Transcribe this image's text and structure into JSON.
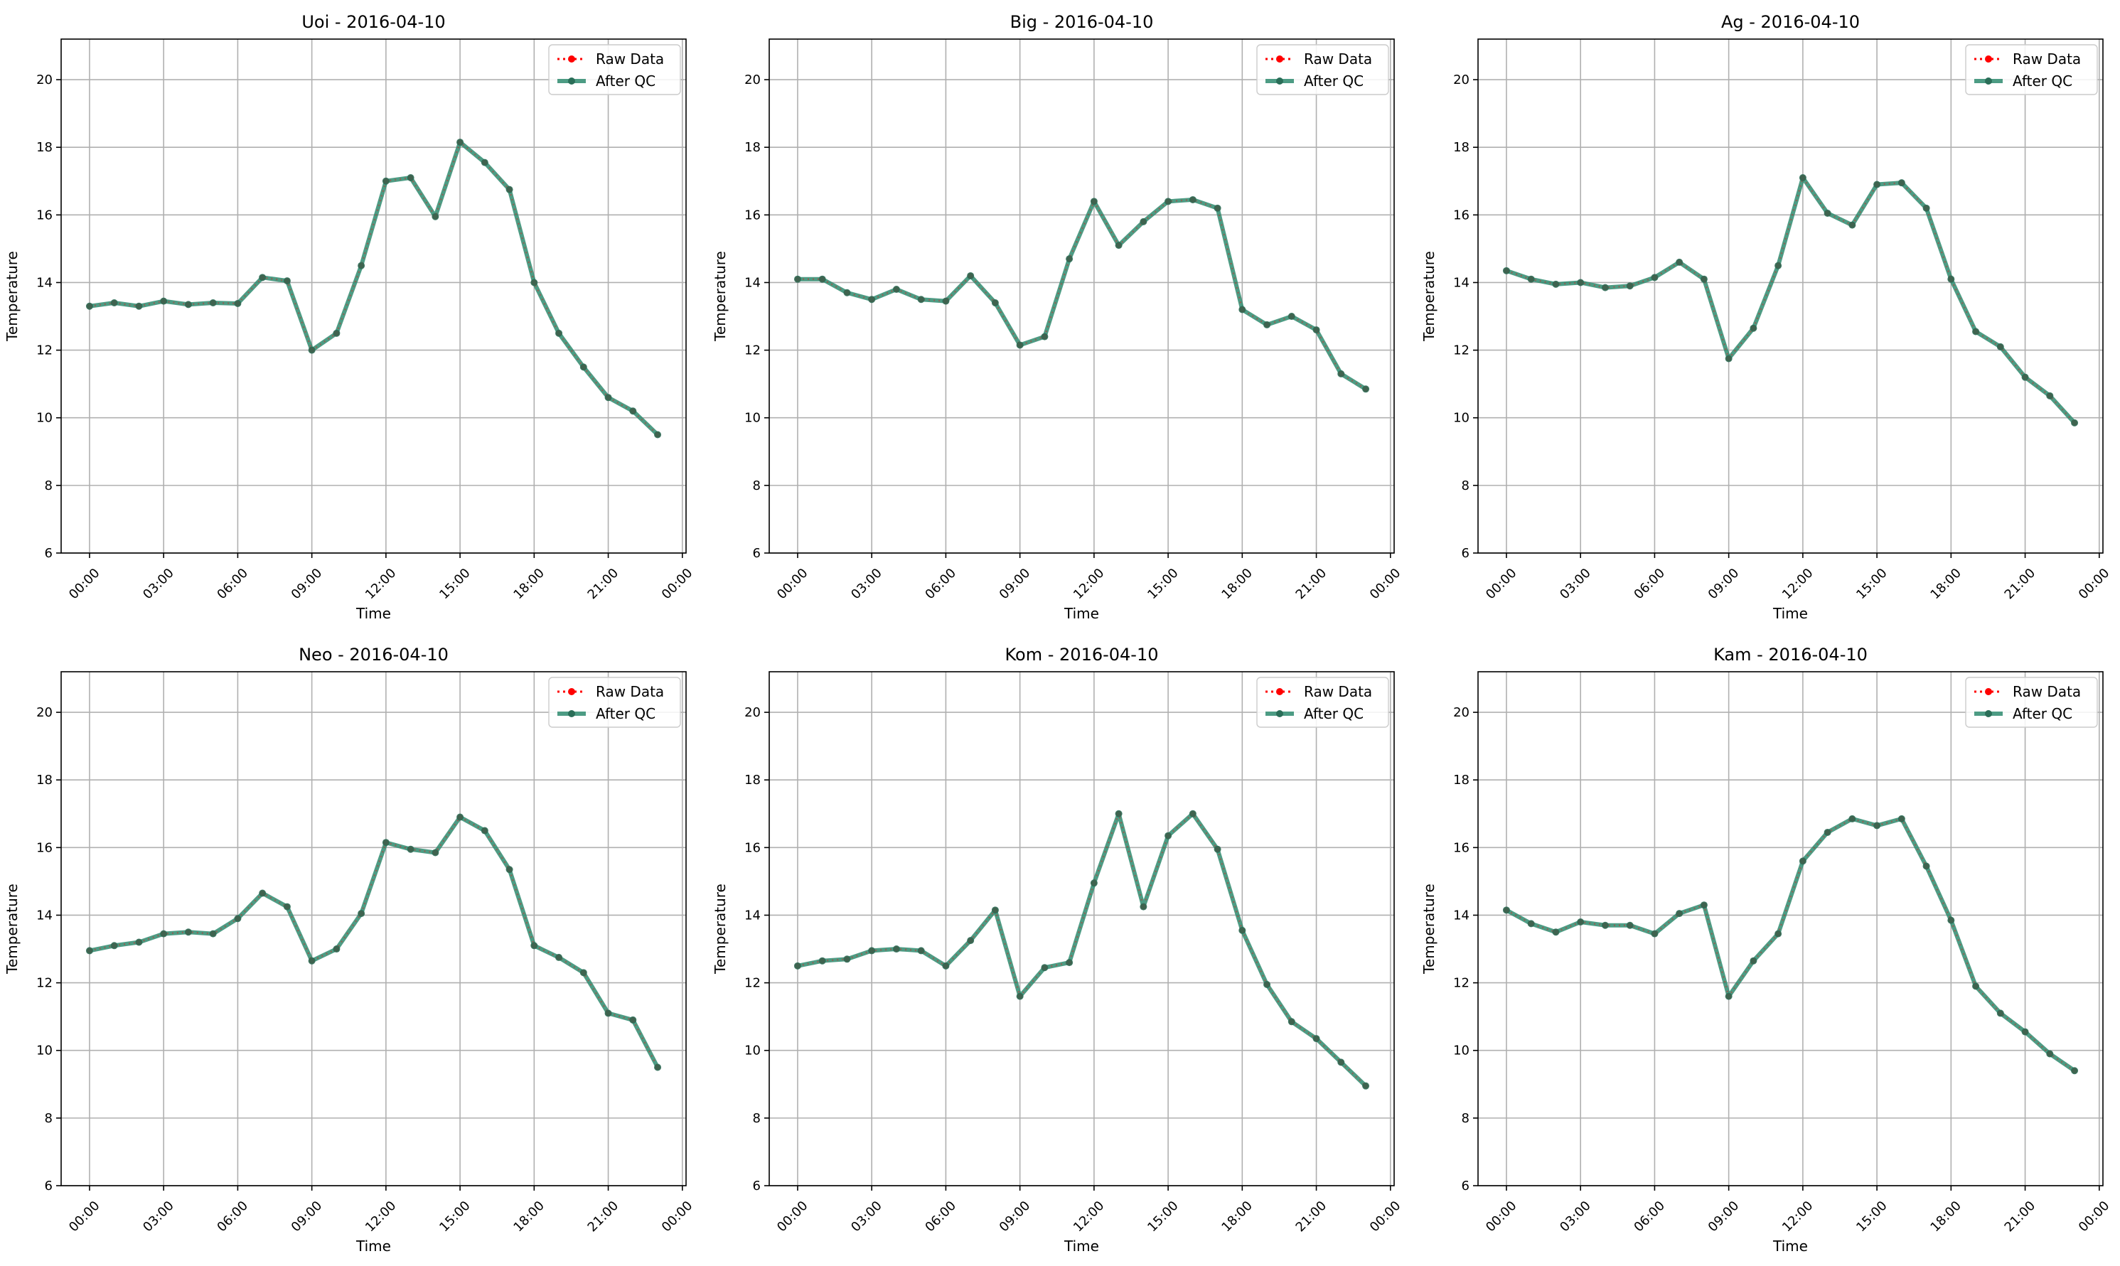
{
  "figure": {
    "legend": {
      "raw_label": "Raw Data",
      "qc_label": "After QC",
      "placement": "upper-right"
    }
  },
  "colors": {
    "raw": "#ff0000",
    "qc": "#2e8b6e",
    "grid": "#b0b0b0",
    "axis": "#000000"
  },
  "chart_data": [
    {
      "type": "line",
      "title": "Uoi - 2016-04-10",
      "xlabel": "Time",
      "ylabel": "Temperature",
      "ylim": [
        6,
        21.2
      ],
      "yticks": [
        6,
        8,
        10,
        12,
        14,
        16,
        18,
        20
      ],
      "xlim": [
        "2016-04-09 22:51",
        "2016-04-11 00:09"
      ],
      "xticks": [
        "00:00",
        "03:00",
        "06:00",
        "09:00",
        "12:00",
        "15:00",
        "18:00",
        "21:00",
        "00:00"
      ],
      "grid": true,
      "x": [
        "00:00",
        "01:00",
        "02:00",
        "03:00",
        "04:00",
        "05:00",
        "06:00",
        "07:00",
        "08:00",
        "09:00",
        "10:00",
        "11:00",
        "12:00",
        "13:00",
        "14:00",
        "15:00",
        "16:00",
        "17:00",
        "18:00",
        "19:00",
        "20:00",
        "21:00",
        "22:00",
        "23:00"
      ],
      "series": [
        {
          "name": "Raw Data",
          "values": [
            13.3,
            13.4,
            13.3,
            13.45,
            13.35,
            13.4,
            13.38,
            14.15,
            14.05,
            12.0,
            12.5,
            14.5,
            17.0,
            17.1,
            15.95,
            18.15,
            17.55,
            16.75,
            14.0,
            12.5,
            11.5,
            10.6,
            10.2,
            9.5
          ]
        },
        {
          "name": "After QC",
          "values": [
            13.3,
            13.4,
            13.3,
            13.45,
            13.35,
            13.4,
            13.38,
            14.15,
            14.05,
            12.0,
            12.5,
            14.5,
            17.0,
            17.1,
            15.95,
            18.15,
            17.55,
            16.75,
            14.0,
            12.5,
            11.5,
            10.6,
            10.2,
            9.5
          ]
        }
      ]
    },
    {
      "type": "line",
      "title": "Big - 2016-04-10",
      "xlabel": "Time",
      "ylabel": "Temperature",
      "ylim": [
        6,
        21.2
      ],
      "yticks": [
        6,
        8,
        10,
        12,
        14,
        16,
        18,
        20
      ],
      "xlim": [
        "2016-04-09 22:51",
        "2016-04-11 00:09"
      ],
      "xticks": [
        "00:00",
        "03:00",
        "06:00",
        "09:00",
        "12:00",
        "15:00",
        "18:00",
        "21:00",
        "00:00"
      ],
      "grid": true,
      "x": [
        "00:00",
        "01:00",
        "02:00",
        "03:00",
        "04:00",
        "05:00",
        "06:00",
        "07:00",
        "08:00",
        "09:00",
        "10:00",
        "11:00",
        "12:00",
        "13:00",
        "14:00",
        "15:00",
        "16:00",
        "17:00",
        "18:00",
        "19:00",
        "20:00",
        "21:00",
        "22:00",
        "23:00"
      ],
      "series": [
        {
          "name": "Raw Data",
          "values": [
            14.1,
            14.1,
            13.7,
            13.5,
            13.8,
            13.5,
            13.45,
            14.2,
            13.4,
            12.15,
            12.4,
            14.7,
            16.4,
            15.1,
            15.8,
            16.4,
            16.45,
            16.2,
            13.2,
            12.75,
            13.0,
            12.6,
            11.3,
            10.85
          ]
        },
        {
          "name": "After QC",
          "values": [
            14.1,
            14.1,
            13.7,
            13.5,
            13.8,
            13.5,
            13.45,
            14.2,
            13.4,
            12.15,
            12.4,
            14.7,
            16.4,
            15.1,
            15.8,
            16.4,
            16.45,
            16.2,
            13.2,
            12.75,
            13.0,
            12.6,
            11.3,
            10.85
          ]
        }
      ]
    },
    {
      "type": "line",
      "title": "Ag - 2016-04-10",
      "xlabel": "Time",
      "ylabel": "Temperature",
      "ylim": [
        6,
        21.2
      ],
      "yticks": [
        6,
        8,
        10,
        12,
        14,
        16,
        18,
        20
      ],
      "xlim": [
        "2016-04-09 22:51",
        "2016-04-11 00:09"
      ],
      "xticks": [
        "00:00",
        "03:00",
        "06:00",
        "09:00",
        "12:00",
        "15:00",
        "18:00",
        "21:00",
        "00:00"
      ],
      "grid": true,
      "x": [
        "00:00",
        "01:00",
        "02:00",
        "03:00",
        "04:00",
        "05:00",
        "06:00",
        "07:00",
        "08:00",
        "09:00",
        "10:00",
        "11:00",
        "12:00",
        "13:00",
        "14:00",
        "15:00",
        "16:00",
        "17:00",
        "18:00",
        "19:00",
        "20:00",
        "21:00",
        "22:00",
        "23:00"
      ],
      "series": [
        {
          "name": "Raw Data",
          "values": [
            14.35,
            14.1,
            13.95,
            14.0,
            13.85,
            13.9,
            14.15,
            14.6,
            14.1,
            11.75,
            12.65,
            14.5,
            17.1,
            16.05,
            15.7,
            16.9,
            16.95,
            16.2,
            14.1,
            12.55,
            12.1,
            11.2,
            10.65,
            9.85
          ]
        },
        {
          "name": "After QC",
          "values": [
            14.35,
            14.1,
            13.95,
            14.0,
            13.85,
            13.9,
            14.15,
            14.6,
            14.1,
            11.75,
            12.65,
            14.5,
            17.1,
            16.05,
            15.7,
            16.9,
            16.95,
            16.2,
            14.1,
            12.55,
            12.1,
            11.2,
            10.65,
            9.85
          ]
        }
      ]
    },
    {
      "type": "line",
      "title": "Neo - 2016-04-10",
      "xlabel": "Time",
      "ylabel": "Temperature",
      "ylim": [
        6,
        21.2
      ],
      "yticks": [
        6,
        8,
        10,
        12,
        14,
        16,
        18,
        20
      ],
      "xlim": [
        "2016-04-09 22:51",
        "2016-04-11 00:09"
      ],
      "xticks": [
        "00:00",
        "03:00",
        "06:00",
        "09:00",
        "12:00",
        "15:00",
        "18:00",
        "21:00",
        "00:00"
      ],
      "grid": true,
      "x": [
        "00:00",
        "01:00",
        "02:00",
        "03:00",
        "04:00",
        "05:00",
        "06:00",
        "07:00",
        "08:00",
        "09:00",
        "10:00",
        "11:00",
        "12:00",
        "13:00",
        "14:00",
        "15:00",
        "16:00",
        "17:00",
        "18:00",
        "19:00",
        "20:00",
        "21:00",
        "22:00",
        "23:00"
      ],
      "series": [
        {
          "name": "Raw Data",
          "values": [
            12.95,
            13.1,
            13.2,
            13.45,
            13.5,
            13.45,
            13.9,
            14.65,
            14.25,
            12.65,
            13.0,
            14.05,
            16.15,
            15.95,
            15.85,
            16.9,
            16.5,
            15.35,
            13.1,
            12.75,
            12.3,
            11.1,
            10.9,
            9.5
          ]
        },
        {
          "name": "After QC",
          "values": [
            12.95,
            13.1,
            13.2,
            13.45,
            13.5,
            13.45,
            13.9,
            14.65,
            14.25,
            12.65,
            13.0,
            14.05,
            16.15,
            15.95,
            15.85,
            16.9,
            16.5,
            15.35,
            13.1,
            12.75,
            12.3,
            11.1,
            10.9,
            9.5
          ]
        }
      ]
    },
    {
      "type": "line",
      "title": "Kom - 2016-04-10",
      "xlabel": "Time",
      "ylabel": "Temperature",
      "ylim": [
        6,
        21.2
      ],
      "yticks": [
        6,
        8,
        10,
        12,
        14,
        16,
        18,
        20
      ],
      "xlim": [
        "2016-04-09 22:51",
        "2016-04-11 00:09"
      ],
      "xticks": [
        "00:00",
        "03:00",
        "06:00",
        "09:00",
        "12:00",
        "15:00",
        "18:00",
        "21:00",
        "00:00"
      ],
      "grid": true,
      "x": [
        "00:00",
        "01:00",
        "02:00",
        "03:00",
        "04:00",
        "05:00",
        "06:00",
        "07:00",
        "08:00",
        "09:00",
        "10:00",
        "11:00",
        "12:00",
        "13:00",
        "14:00",
        "15:00",
        "16:00",
        "17:00",
        "18:00",
        "19:00",
        "20:00",
        "21:00",
        "22:00",
        "23:00"
      ],
      "series": [
        {
          "name": "Raw Data",
          "values": [
            12.5,
            12.65,
            12.7,
            12.95,
            13.0,
            12.95,
            12.5,
            13.25,
            14.15,
            11.6,
            12.45,
            12.6,
            14.95,
            17.0,
            14.25,
            16.35,
            17.0,
            15.95,
            13.55,
            11.95,
            10.85,
            10.35,
            9.65,
            8.95
          ]
        },
        {
          "name": "After QC",
          "values": [
            12.5,
            12.65,
            12.7,
            12.95,
            13.0,
            12.95,
            12.5,
            13.25,
            14.15,
            11.6,
            12.45,
            12.6,
            14.95,
            17.0,
            14.25,
            16.35,
            17.0,
            15.95,
            13.55,
            11.95,
            10.85,
            10.35,
            9.65,
            8.95
          ]
        }
      ]
    },
    {
      "type": "line",
      "title": "Kam - 2016-04-10",
      "xlabel": "Time",
      "ylabel": "Temperature",
      "ylim": [
        6,
        21.2
      ],
      "yticks": [
        6,
        8,
        10,
        12,
        14,
        16,
        18,
        20
      ],
      "xlim": [
        "2016-04-09 22:51",
        "2016-04-11 00:09"
      ],
      "xticks": [
        "00:00",
        "03:00",
        "06:00",
        "09:00",
        "12:00",
        "15:00",
        "18:00",
        "21:00",
        "00:00"
      ],
      "grid": true,
      "x": [
        "00:00",
        "01:00",
        "02:00",
        "03:00",
        "04:00",
        "05:00",
        "06:00",
        "07:00",
        "08:00",
        "09:00",
        "10:00",
        "11:00",
        "12:00",
        "13:00",
        "14:00",
        "15:00",
        "16:00",
        "17:00",
        "18:00",
        "19:00",
        "20:00",
        "21:00",
        "22:00",
        "23:00"
      ],
      "series": [
        {
          "name": "Raw Data",
          "values": [
            14.15,
            13.75,
            13.5,
            13.8,
            13.7,
            13.7,
            13.45,
            14.05,
            14.3,
            11.6,
            12.65,
            13.45,
            15.6,
            16.45,
            16.85,
            16.65,
            16.85,
            15.45,
            13.85,
            11.9,
            11.1,
            10.55,
            9.9,
            9.4
          ]
        },
        {
          "name": "After QC",
          "values": [
            14.15,
            13.75,
            13.5,
            13.8,
            13.7,
            13.7,
            13.45,
            14.05,
            14.3,
            11.6,
            12.65,
            13.45,
            15.6,
            16.45,
            16.85,
            16.65,
            16.85,
            15.45,
            13.85,
            11.9,
            11.1,
            10.55,
            9.9,
            9.4
          ]
        }
      ]
    }
  ]
}
